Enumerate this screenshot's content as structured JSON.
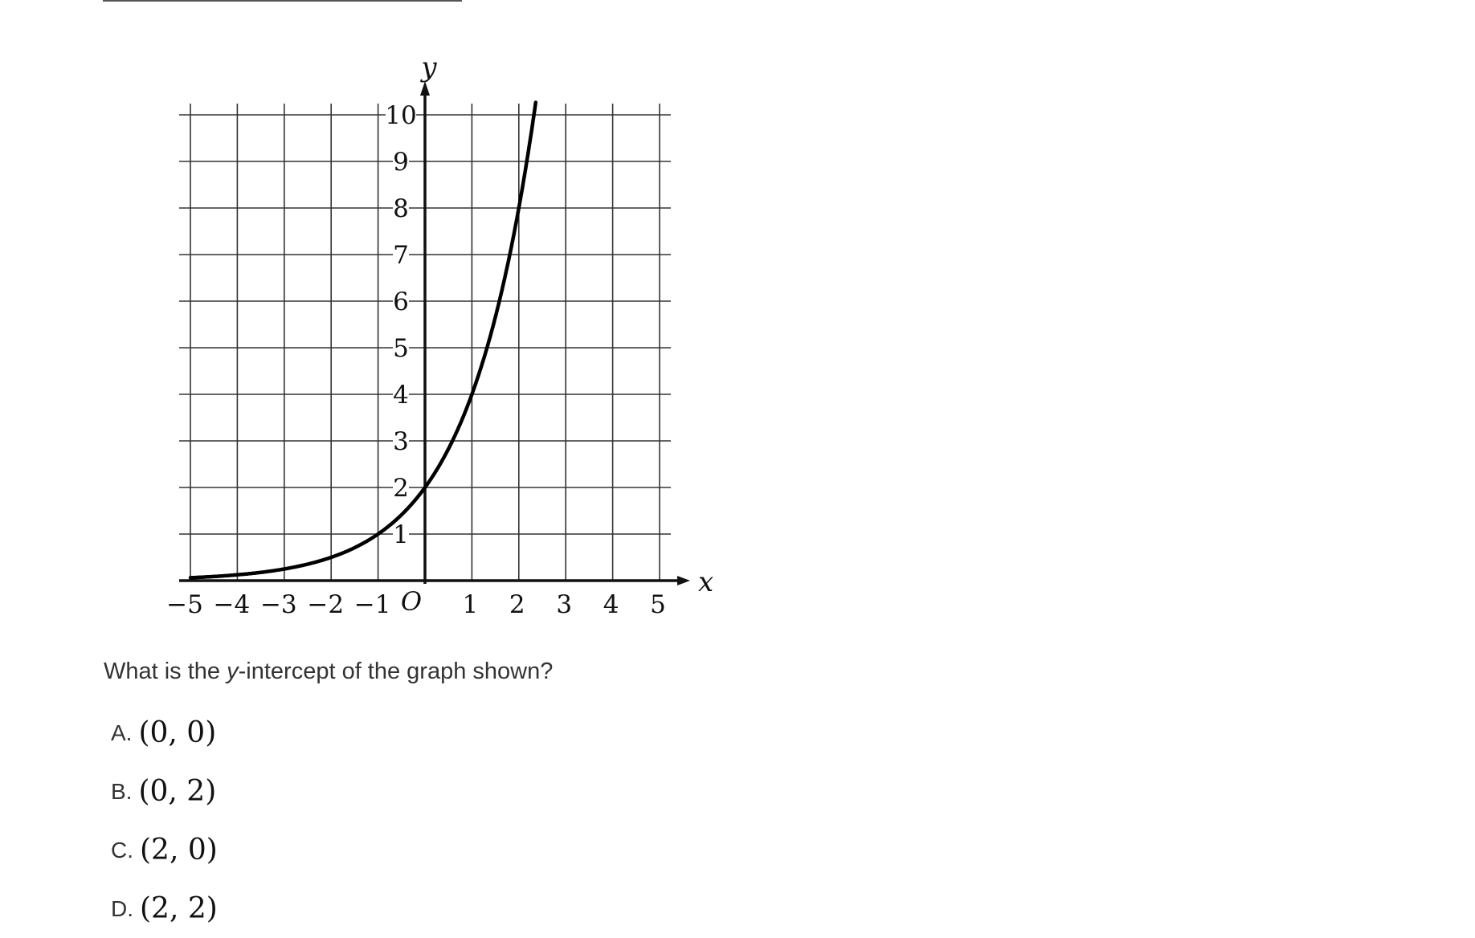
{
  "question": {
    "before": "What is the ",
    "variable": "y",
    "after": "-intercept of the graph shown?"
  },
  "choices": [
    {
      "letter": "A.",
      "value": "(0, 0)"
    },
    {
      "letter": "B.",
      "value": "(0, 2)"
    },
    {
      "letter": "C.",
      "value": "(2, 0)"
    },
    {
      "letter": "D.",
      "value": "(2, 2)"
    }
  ],
  "chart_data": {
    "type": "line",
    "title": "",
    "xlabel": "x",
    "ylabel": "y",
    "origin_label": "O",
    "xlim": [
      -5,
      5
    ],
    "ylim": [
      0,
      10
    ],
    "x_ticks": [
      "−5",
      "−4",
      "−3",
      "−2",
      "−1",
      "1",
      "2",
      "3",
      "4",
      "5"
    ],
    "y_ticks": [
      "1",
      "2",
      "3",
      "4",
      "5",
      "6",
      "7",
      "8",
      "9",
      "10"
    ],
    "grid": true,
    "function": "y = 2·2^x",
    "series": [
      {
        "x": [
          -5,
          -4,
          -3,
          -2,
          -1,
          0,
          1,
          2,
          2.35
        ],
        "y": [
          0.0625,
          0.125,
          0.25,
          0.5,
          1,
          2,
          4,
          8,
          10.2
        ]
      }
    ]
  }
}
